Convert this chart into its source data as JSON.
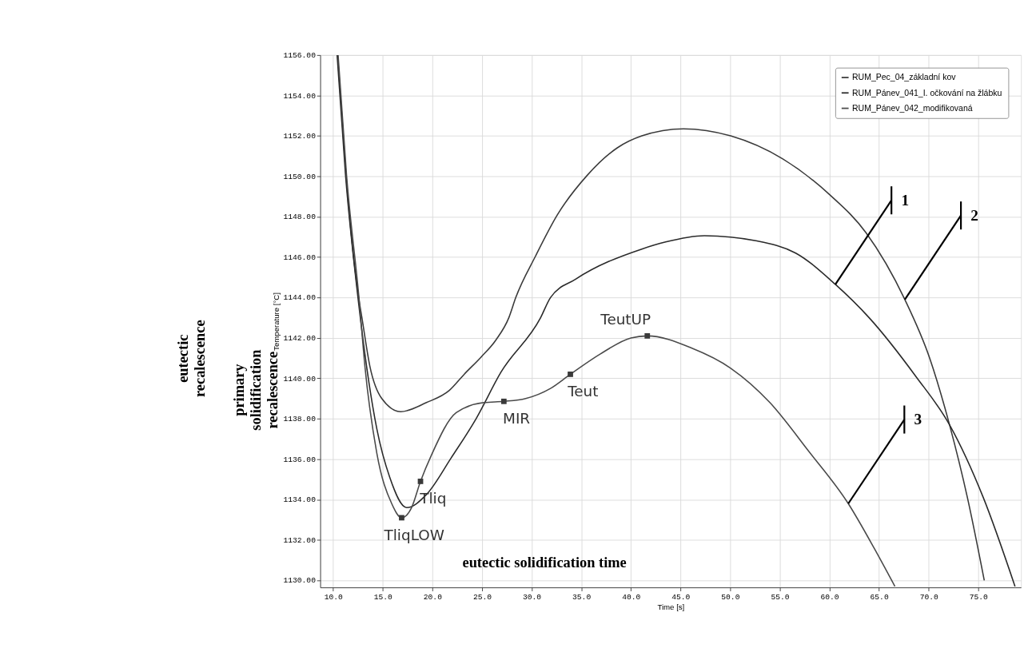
{
  "chart_data": {
    "type": "line",
    "xlabel": "Time [s]",
    "ylabel": "Temperature [°C]",
    "xlim": [
      8.7,
      79.3
    ],
    "ylim": [
      1129.65,
      1156.0
    ],
    "xticks": [
      {
        "value": 10,
        "label": "10.0"
      },
      {
        "value": 15,
        "label": "15.0"
      },
      {
        "value": 20,
        "label": "20.0"
      },
      {
        "value": 25,
        "label": "25.0"
      },
      {
        "value": 30,
        "label": "30.0"
      },
      {
        "value": 35,
        "label": "35.0"
      },
      {
        "value": 40,
        "label": "40.0"
      },
      {
        "value": 45,
        "label": "45.0"
      },
      {
        "value": 50,
        "label": "50.0"
      },
      {
        "value": 55,
        "label": "55.0"
      },
      {
        "value": 60,
        "label": "60.0"
      },
      {
        "value": 65,
        "label": "65.0"
      },
      {
        "value": 70,
        "label": "70.0"
      },
      {
        "value": 75,
        "label": "75.0"
      }
    ],
    "yticks": [
      {
        "value": 1130,
        "label": "1130.00"
      },
      {
        "value": 1132,
        "label": "1132.00"
      },
      {
        "value": 1134,
        "label": "1134.00"
      },
      {
        "value": 1136,
        "label": "1136.00"
      },
      {
        "value": 1138,
        "label": "1138.00"
      },
      {
        "value": 1140,
        "label": "1140.00"
      },
      {
        "value": 1142,
        "label": "1142.00"
      },
      {
        "value": 1144,
        "label": "1144.00"
      },
      {
        "value": 1146,
        "label": "1146.00"
      },
      {
        "value": 1148,
        "label": "1148.00"
      },
      {
        "value": 1150,
        "label": "1150.00"
      },
      {
        "value": 1152,
        "label": "1152.00"
      },
      {
        "value": 1154,
        "label": "1154.00"
      },
      {
        "value": 1156,
        "label": "1156.00"
      }
    ],
    "grid": true,
    "legend": "top right",
    "line_style": "solid",
    "series": [
      {
        "name": "RUM_Pec_04_základní kov",
        "color": "#3a3a3a",
        "x": [
          10.45,
          11.3,
          12.57,
          12.9,
          13.7,
          14.9,
          16.8,
          19.4,
          21.7,
          23.2,
          24.9,
          26.4,
          27.7,
          28.4,
          30.4,
          32.6,
          35.6,
          38.6,
          41.1,
          45.3,
          50.05,
          55.3,
          60.0,
          63.7,
          67.6,
          70.1,
          72.1,
          73.9,
          75.6
        ],
        "values": [
          1156.0,
          1150.05,
          1144.0,
          1143.0,
          1140.6,
          1139.0,
          1138.35,
          1138.8,
          1139.4,
          1140.2,
          1141.05,
          1141.9,
          1143.0,
          1144.0,
          1146.06,
          1148.1,
          1150.05,
          1151.4,
          1152.0,
          1152.35,
          1152.0,
          1150.86,
          1149.1,
          1147.2,
          1143.9,
          1141.0,
          1137.7,
          1134.1,
          1130.0
        ]
      },
      {
        "name": "RUM_Pánev_041_I. očkování na žlábku",
        "color": "#2a2a2a",
        "x": [
          10.4,
          11.25,
          12.5,
          13.2,
          14.4,
          15.7,
          17.4,
          19.4,
          21.9,
          24.4,
          26.9,
          30.9,
          31.9,
          34.4,
          41.1,
          43.5,
          47.4,
          52.7,
          56.6,
          60.6,
          64.0,
          68.7,
          72.1,
          75.5,
          78.7
        ],
        "values": [
          1156.0,
          1150.05,
          1144.0,
          1141.2,
          1137.5,
          1135.1,
          1133.6,
          1134.25,
          1136.07,
          1138.0,
          1140.3,
          1143.0,
          1144.0,
          1144.9,
          1146.4,
          1146.75,
          1147.06,
          1146.8,
          1146.2,
          1144.65,
          1143.0,
          1140.1,
          1137.7,
          1134.1,
          1129.7
        ]
      },
      {
        "name": "RUM_Pánev_042_modifikovaná",
        "color": "#4a4a4a",
        "x": [
          10.5,
          11.35,
          12.6,
          13.2,
          14.4,
          15.9,
          16.9,
          17.9,
          18.8,
          19.9,
          22.4,
          25.2,
          27.2,
          29.4,
          31.9,
          33.9,
          36.9,
          40.0,
          41.65,
          46.1,
          50.05,
          54.0,
          57.9,
          61.9,
          64.5,
          66.6
        ],
        "values": [
          1156.0,
          1150.05,
          1144.0,
          1140.6,
          1136.3,
          1133.8,
          1133.1,
          1133.6,
          1134.9,
          1136.2,
          1138.3,
          1138.8,
          1138.86,
          1139.0,
          1139.5,
          1140.2,
          1141.2,
          1142.0,
          1142.1,
          1141.5,
          1140.5,
          1138.8,
          1136.4,
          1133.8,
          1131.6,
          1129.7
        ]
      },
      {
        "type": "scatter",
        "marker": "square",
        "color": "#3a3a3a",
        "x": [
          16.9,
          18.8,
          27.2,
          33.9,
          41.65
        ],
        "values": [
          1133.1,
          1134.9,
          1138.86,
          1140.2,
          1142.1
        ]
      }
    ],
    "annotations": [
      {
        "text": "TeutUP",
        "x": 41.65,
        "y": 1142.1
      },
      {
        "text": "Teut",
        "x": 33.9,
        "y": 1140.2
      },
      {
        "text": "MIR",
        "x": 27.2,
        "y": 1138.86
      },
      {
        "text": "Tliq",
        "x": 18.8,
        "y": 1134.9
      },
      {
        "text": "TliqLOW",
        "x": 16.9,
        "y": 1133.1
      },
      "eutectic solidification time",
      {
        "text": "1",
        "x": 60.6,
        "y": 1144.65
      },
      {
        "text": "2",
        "x": 67.6,
        "y": 1143.9
      },
      {
        "text": "3",
        "x": 61.9,
        "y": 1133.8
      },
      "eutectic recalescence",
      "primary solidification recalescence"
    ]
  }
}
